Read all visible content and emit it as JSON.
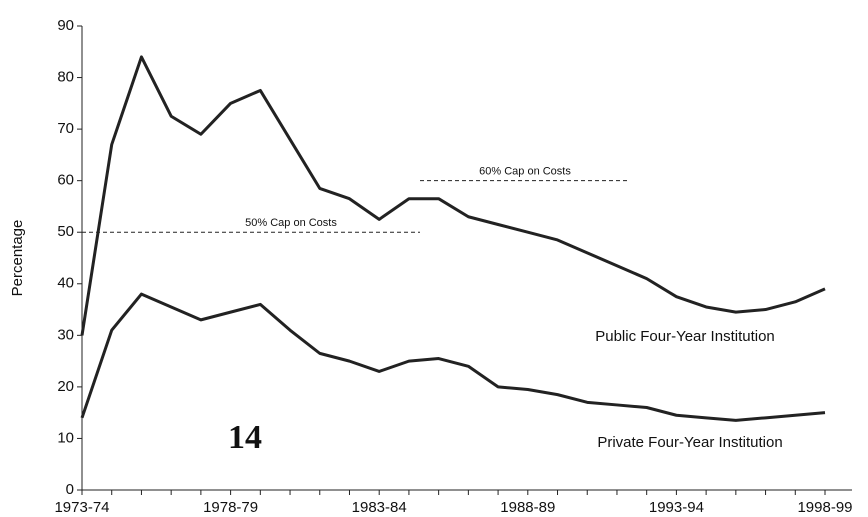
{
  "chart_data": {
    "type": "line",
    "y_label": "Percentage",
    "categories": [
      "1973-74",
      null,
      null,
      null,
      null,
      "1978-79",
      null,
      null,
      null,
      null,
      "1983-84",
      null,
      null,
      null,
      null,
      "1988-89",
      null,
      null,
      null,
      null,
      "1993-94",
      null,
      null,
      null,
      null,
      "1998-99"
    ],
    "series": [
      {
        "name": "Public Four-Year Institution",
        "color": "#222222",
        "values": [
          30,
          67,
          84,
          72.5,
          69,
          75,
          77.5,
          68,
          58.5,
          56.5,
          52.5,
          56.5,
          56.5,
          53,
          51.5,
          50,
          48.5,
          46,
          43.5,
          41,
          37.5,
          35.5,
          34.5,
          35,
          36.5,
          39
        ]
      },
      {
        "name": "Private Four-Year Institution",
        "color": "#222222",
        "values": [
          14,
          31,
          38,
          35.5,
          33,
          34.5,
          36,
          31,
          26.5,
          25,
          23,
          25,
          25.5,
          24,
          20,
          19.5,
          18.5,
          17,
          16.5,
          16,
          14.5,
          14,
          13.5,
          14,
          14.5,
          15
        ]
      }
    ],
    "reference_lines": [
      {
        "label": "50% Cap on Costs",
        "value": 50
      },
      {
        "label": "60% Cap on Costs",
        "value": 60
      }
    ],
    "ylim": [
      0,
      90
    ],
    "yticks": [
      0,
      10,
      20,
      30,
      40,
      50,
      60,
      70,
      80,
      90
    ],
    "grid": false,
    "page_number": "14"
  }
}
